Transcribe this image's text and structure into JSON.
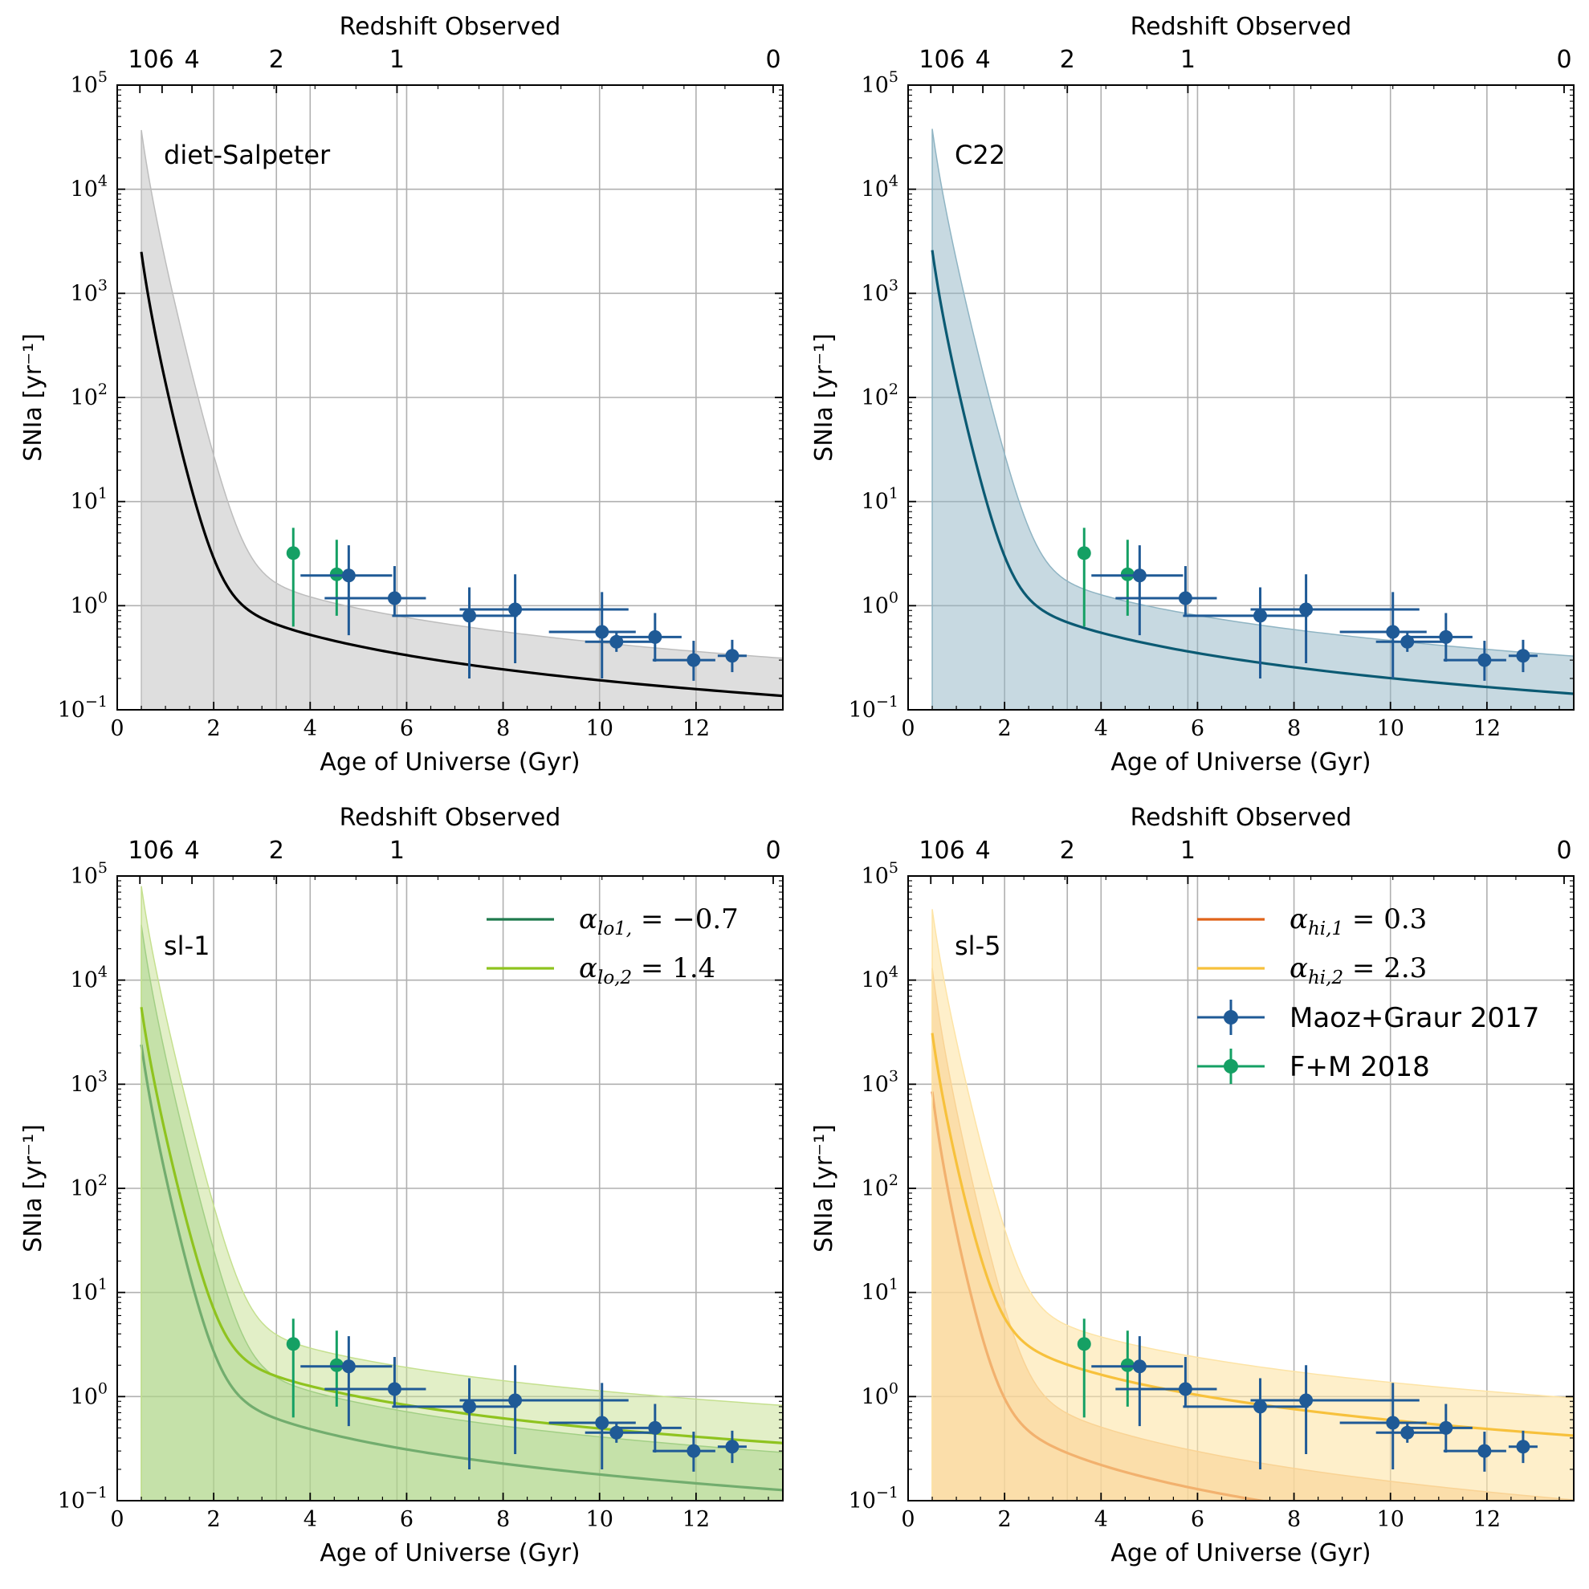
{
  "chart_data": [
    {
      "type": "line",
      "panel_label": "diet-Salpeter",
      "xlabel": "Age of Universe (Gyr)",
      "ylabel": "SNIa [yr⁻¹]",
      "top_xlabel": "Redshift Observed",
      "yscale": "log",
      "xlim": [
        0,
        13.8
      ],
      "ylim": [
        0.1,
        100000
      ],
      "grid": true,
      "legend_position": "none",
      "series": [
        {
          "name": "",
          "color": "#000000",
          "fill_color": "#bdbdbd",
          "fill_opacity": 0.5,
          "curve": {
            "t0": 0.5,
            "A": 2.1,
            "p": -1.05,
            "band_hi_factor": 2.3,
            "band_lo": 0.1,
            "band_top_age": 0.5,
            "band_top_value": 37000,
            "start_value": 2500
          }
        }
      ]
    },
    {
      "type": "line",
      "panel_label": "C22",
      "xlabel": "Age of Universe (Gyr)",
      "ylabel": "SNIa [yr⁻¹]",
      "top_xlabel": "Redshift Observed",
      "yscale": "log",
      "xlim": [
        0,
        13.8
      ],
      "ylim": [
        0.1,
        100000
      ],
      "grid": true,
      "legend_position": "none",
      "series": [
        {
          "name": "",
          "color": "#0b5a73",
          "fill_color": "#8fb4c3",
          "fill_opacity": 0.5,
          "curve": {
            "t0": 0.5,
            "A": 2.2,
            "p": -1.05,
            "band_hi_factor": 2.3,
            "band_lo": 0.1,
            "band_top_age": 0.5,
            "band_top_value": 38000,
            "start_value": 2600
          }
        }
      ]
    },
    {
      "type": "line",
      "panel_label": "sl-1",
      "xlabel": "Age of Universe (Gyr)",
      "ylabel": "SNIa [yr⁻¹]",
      "top_xlabel": "Redshift Observed",
      "yscale": "log",
      "xlim": [
        0,
        13.8
      ],
      "ylim": [
        0.1,
        100000
      ],
      "grid": true,
      "legend_position": "top-right",
      "series": [
        {
          "name": "α_{lo1,} = −0.7",
          "legend_sym": "α",
          "legend_sub": "lo1,",
          "legend_val": " = −0.7",
          "color": "#1f7a4d",
          "fill_color": "#7fbf7a",
          "fill_opacity": 0.45,
          "curve": {
            "t0": 0.5,
            "A": 1.95,
            "p": -1.05,
            "band_hi_factor": 2.3,
            "band_lo": 0.1,
            "band_top_age": 0.5,
            "band_top_value": 34000,
            "start_value": 2400
          }
        },
        {
          "name": "α_{lo,2} = 1.4",
          "legend_sym": "α",
          "legend_sub": "lo,2",
          "legend_val": " = 1.4",
          "color": "#8fc31f",
          "fill_color": "#c5e08f",
          "fill_opacity": 0.5,
          "curve": {
            "t0": 0.5,
            "A": 4.6,
            "p": -0.98,
            "band_hi_factor": 2.3,
            "band_lo": 0.1,
            "band_top_age": 0.5,
            "band_top_value": 80000,
            "start_value": 5500
          }
        }
      ]
    },
    {
      "type": "line",
      "panel_label": "sl-5",
      "xlabel": "Age of Universe (Gyr)",
      "ylabel": "SNIa [yr⁻¹]",
      "top_xlabel": "Redshift Observed",
      "yscale": "log",
      "xlim": [
        0,
        13.8
      ],
      "ylim": [
        0.1,
        100000
      ],
      "grid": true,
      "legend_position": "top-right",
      "series": [
        {
          "name": "α_{hi,1} = 0.3",
          "legend_sym": "α",
          "legend_sub": "hi,1",
          "legend_val": " = 0.3",
          "color": "#e0641a",
          "fill_color": "#f3b97a",
          "fill_opacity": 0.6,
          "curve": {
            "t0": 0.5,
            "A": 1.15,
            "p": -1.25,
            "band_hi_factor": 2.3,
            "band_lo": 0.1,
            "band_top_age": 0.5,
            "band_top_value": 13000,
            "start_value": 850
          }
        },
        {
          "name": "α_{hi,2} = 2.3",
          "legend_sym": "α",
          "legend_sub": "hi,2",
          "legend_val": " = 2.3",
          "color": "#f7c13c",
          "fill_color": "#fde4a6",
          "fill_opacity": 0.6,
          "curve": {
            "t0": 0.5,
            "A": 6.5,
            "p": -1.05,
            "band_hi_factor": 2.3,
            "band_lo": 0.1,
            "band_top_age": 0.5,
            "band_top_value": 48000,
            "start_value": 3100
          }
        }
      ],
      "legend_data_entries": [
        "Maoz+Graur 2017",
        "F+M 2018"
      ]
    }
  ],
  "shared": {
    "x_ticks": [
      0,
      2,
      4,
      6,
      8,
      10,
      12
    ],
    "y_ticks_exp": [
      -1,
      0,
      1,
      2,
      3,
      4,
      5
    ],
    "y_tick_base": "10",
    "top_ticks": [
      {
        "label": "10",
        "age": 0.47
      },
      {
        "label": "6",
        "age": 0.93
      },
      {
        "label": "4",
        "age": 1.55
      },
      {
        "label": "2",
        "age": 3.3
      },
      {
        "label": "1",
        "age": 5.8
      },
      {
        "label": "0",
        "age": 13.6
      }
    ],
    "observations": {
      "maoz_graur_2017": {
        "name": "Maoz+Graur 2017",
        "color": "#1f5a96",
        "points": [
          {
            "x": 4.8,
            "y": 1.95,
            "xlo": 3.8,
            "xhi": 5.7,
            "ylo": 0.52,
            "yhi": 3.8
          },
          {
            "x": 5.75,
            "y": 1.18,
            "xlo": 4.3,
            "xhi": 6.4,
            "ylo": 0.82,
            "yhi": 2.4
          },
          {
            "x": 7.3,
            "y": 0.8,
            "xlo": 5.7,
            "xhi": 8.3,
            "ylo": 0.2,
            "yhi": 1.5
          },
          {
            "x": 8.25,
            "y": 0.92,
            "xlo": 7.1,
            "xhi": 10.6,
            "ylo": 0.28,
            "yhi": 2.0
          },
          {
            "x": 10.05,
            "y": 0.56,
            "xlo": 8.95,
            "xhi": 10.75,
            "ylo": 0.2,
            "yhi": 1.35
          },
          {
            "x": 10.35,
            "y": 0.45,
            "xlo": 9.7,
            "xhi": 11.1,
            "ylo": 0.36,
            "yhi": 0.57
          },
          {
            "x": 11.15,
            "y": 0.5,
            "xlo": 10.3,
            "xhi": 11.7,
            "ylo": 0.29,
            "yhi": 0.85
          },
          {
            "x": 11.95,
            "y": 0.3,
            "xlo": 11.1,
            "xhi": 12.4,
            "ylo": 0.19,
            "yhi": 0.46
          },
          {
            "x": 12.75,
            "y": 0.33,
            "xlo": 12.45,
            "xhi": 13.05,
            "ylo": 0.23,
            "yhi": 0.47
          }
        ]
      },
      "fm_2018": {
        "name": "F+M 2018",
        "color": "#15a064",
        "points": [
          {
            "x": 3.65,
            "y": 3.2,
            "ylo": 0.63,
            "yhi": 5.6
          },
          {
            "x": 4.55,
            "y": 2.0,
            "ylo": 0.8,
            "yhi": 4.3
          }
        ]
      }
    }
  }
}
